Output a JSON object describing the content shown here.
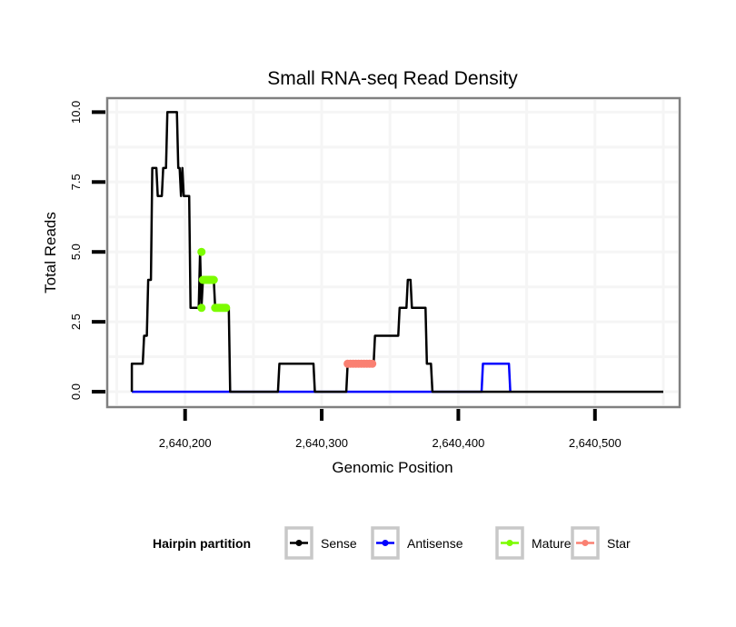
{
  "chart_data": {
    "type": "line",
    "title": "Small RNA-seq Read Density",
    "xlabel": "Genomic Position",
    "ylabel": "Total Reads",
    "xlim": [
      2640143,
      2640562
    ],
    "ylim": [
      -0.55,
      10.5
    ],
    "x_ticks": [
      2640200,
      2640300,
      2640400,
      2640500
    ],
    "x_tick_labels": [
      "2,640,200",
      "2,640,300",
      "2,640,400",
      "2,640,500"
    ],
    "y_ticks": [
      0,
      2.5,
      5,
      7.5,
      10
    ],
    "y_tick_labels": [
      "0.0",
      "2.5",
      "5.0",
      "7.5",
      "10.0"
    ],
    "grid": true,
    "legend": {
      "title": "Hairpin partition",
      "position": "bottom",
      "entries": [
        "Sense",
        "Antisense",
        "Mature",
        "Star"
      ]
    },
    "series": [
      {
        "name": "Sense",
        "color": "#000000",
        "style": "step-line",
        "x": [
          2640161,
          2640161,
          2640169,
          2640170,
          2640172,
          2640173,
          2640175,
          2640176,
          2640179,
          2640180,
          2640183,
          2640184,
          2640186,
          2640187,
          2640194,
          2640195,
          2640196,
          2640197,
          2640198,
          2640199,
          2640203,
          2640204,
          2640210,
          2640211,
          2640212,
          2640213,
          2640214,
          2640221,
          2640222,
          2640230,
          2640232,
          2640233,
          2640268,
          2640269,
          2640294,
          2640295,
          2640318,
          2640319,
          2640338,
          2640339,
          2640356,
          2640357,
          2640362,
          2640363,
          2640365,
          2640366,
          2640376,
          2640377,
          2640380,
          2640381,
          2640550
        ],
        "y": [
          0,
          1,
          1,
          2,
          2,
          4,
          4,
          8,
          8,
          7,
          7,
          8,
          8,
          10,
          10,
          8,
          8,
          7,
          8,
          7,
          7,
          3,
          3,
          5,
          3,
          4,
          4,
          4,
          3,
          3,
          3,
          0,
          0,
          1,
          1,
          0,
          0,
          1,
          1,
          2,
          2,
          3,
          3,
          4,
          4,
          3,
          3,
          1,
          1,
          0,
          0
        ]
      },
      {
        "name": "Antisense",
        "color": "#0000ff",
        "style": "step-line",
        "x": [
          2640161,
          2640233,
          2640268,
          2640295,
          2640319,
          2640381,
          2640417,
          2640418,
          2640437,
          2640438
        ],
        "y": [
          0,
          0,
          0,
          0,
          0,
          0,
          0,
          1,
          1,
          0
        ]
      },
      {
        "name": "Mature",
        "color": "#7cfc00",
        "style": "points",
        "x": [
          2640212,
          2640212,
          2640213,
          2640214,
          2640215,
          2640216,
          2640217,
          2640218,
          2640219,
          2640220,
          2640221,
          2640222,
          2640223,
          2640224,
          2640225,
          2640226,
          2640227,
          2640228,
          2640229,
          2640230
        ],
        "y": [
          5,
          3,
          4,
          4,
          4,
          4,
          4,
          4,
          4,
          4,
          4,
          3,
          3,
          3,
          3,
          3,
          3,
          3,
          3,
          3
        ]
      },
      {
        "name": "Star",
        "color": "#fa8072",
        "style": "points",
        "x": [
          2640319,
          2640321,
          2640323,
          2640325,
          2640327,
          2640329,
          2640331,
          2640333,
          2640335,
          2640337
        ],
        "y": [
          1,
          1,
          1,
          1,
          1,
          1,
          1,
          1,
          1,
          1
        ]
      }
    ]
  }
}
